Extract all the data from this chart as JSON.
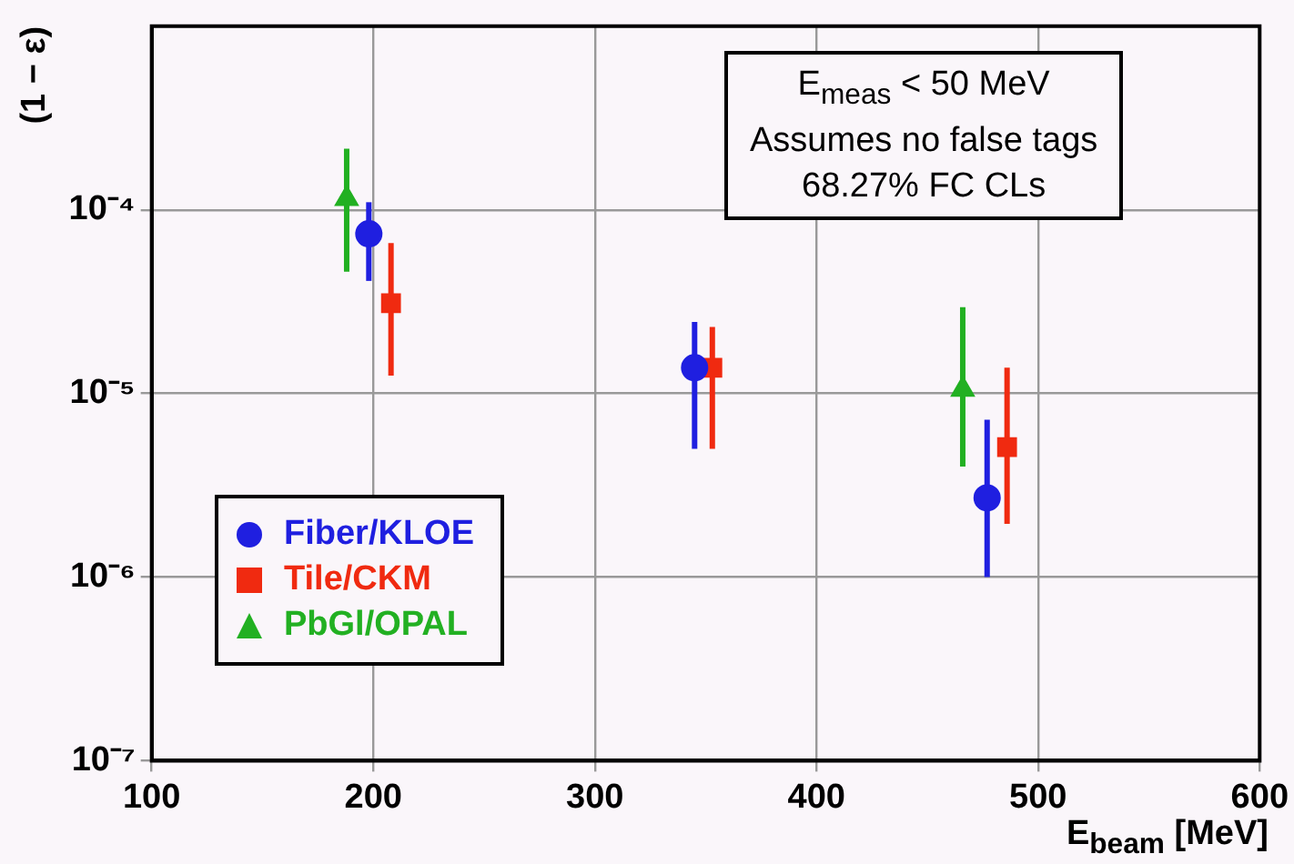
{
  "chart_data": {
    "type": "scatter",
    "xlabel": "E$_{beam}$ [MeV]",
    "ylabel": "(1 − ε)",
    "xlim": [
      100,
      600
    ],
    "xticks": [
      100,
      200,
      300,
      400,
      500,
      600
    ],
    "ylim": [
      1e-07,
      0.001
    ],
    "yticks": [
      {
        "value": 1e-07,
        "label": "10⁻⁷"
      },
      {
        "value": 1e-06,
        "label": "10⁻⁶"
      },
      {
        "value": 1e-05,
        "label": "10⁻⁵"
      },
      {
        "value": 0.0001,
        "label": "10⁻⁴"
      }
    ],
    "log": "y",
    "grid": true,
    "legend": "bottom left",
    "series": [
      {
        "name": "Fiber/KLOE",
        "color": "#1f1fe0",
        "marker": "circle",
        "x": [
          198,
          345,
          477
        ],
        "values": [
          7.4e-05,
          1.38e-05,
          2.7e-06
        ],
        "errors": [
          [
            4.1e-05,
            0.00011
          ],
          [
            5e-06,
            2.45e-05
          ],
          [
            1e-06,
            7.2e-06
          ]
        ]
      },
      {
        "name": "Tile/CKM",
        "color": "#f02a10",
        "marker": "square",
        "x": [
          208,
          353,
          486
        ],
        "values": [
          3.1e-05,
          1.38e-05,
          5.1e-06
        ],
        "errors": [
          [
            1.25e-05,
            6.6e-05
          ],
          [
            5e-06,
            2.3e-05
          ],
          [
            1.95e-06,
            1.38e-05
          ]
        ]
      },
      {
        "name": "PbGl/OPAL",
        "color": "#22b022",
        "marker": "triangle",
        "x": [
          188,
          466
        ],
        "values": [
          0.000115,
          1.05e-05
        ],
        "errors": [
          [
            4.6e-05,
            0.000215
          ],
          [
            4e-06,
            2.95e-05
          ]
        ]
      }
    ],
    "annotations": [
      "E$_{meas}$ < 50 MeV",
      "Assumes no false tags",
      "68.27% FC CLs"
    ]
  }
}
